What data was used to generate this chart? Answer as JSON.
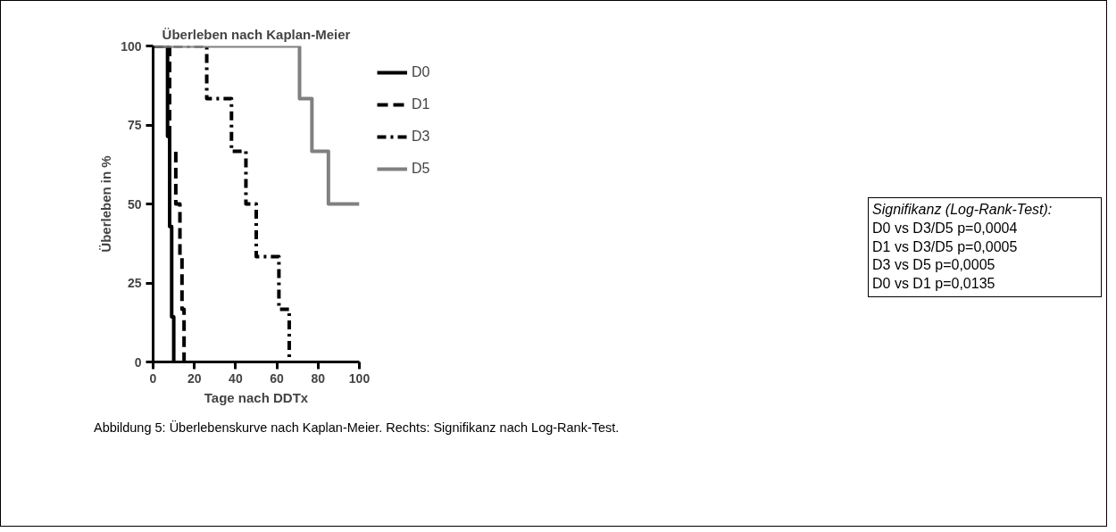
{
  "chart_data": {
    "type": "step",
    "title": "Überleben nach Kaplan-Meier",
    "xlabel": "Tage nach DDTx",
    "ylabel": "Überleben in %",
    "series": [
      {
        "name": "D0",
        "color": "#000000",
        "line_style": "solid",
        "x": [
          0,
          7,
          8,
          9,
          10
        ],
        "values": [
          100,
          71.4,
          42.9,
          14.3,
          0
        ]
      },
      {
        "name": "D1",
        "color": "#000000",
        "line_style": "dashed",
        "x": [
          0,
          8,
          11,
          13,
          14,
          15
        ],
        "values": [
          100,
          66.7,
          50,
          33.3,
          16.7,
          0
        ]
      },
      {
        "name": "D3",
        "color": "#000000",
        "line_style": "dotted",
        "x": [
          0,
          26,
          38,
          45,
          50,
          61,
          66
        ],
        "values": [
          100,
          83.3,
          66.7,
          50,
          33.3,
          16.7,
          0
        ]
      },
      {
        "name": "D5",
        "color": "#808080",
        "line_style": "solid",
        "x": [
          0,
          71,
          77,
          85,
          100
        ],
        "values": [
          100,
          83.3,
          66.7,
          50,
          50
        ]
      }
    ],
    "xlim": [
      0,
      100
    ],
    "xticks": [
      0,
      20,
      40,
      60,
      80,
      100
    ],
    "ylim": [
      0,
      100
    ],
    "yticks": [
      0,
      25,
      50,
      75,
      100
    ],
    "grid": false,
    "legend": "right",
    "annotations": [
      "Signifikanz (Log-Rank-Test):",
      "D0 vs D3/D5 p=0,0004",
      "D1 vs D3/D5 p=0,0005",
      "D3 vs D5 p=0,0005",
      "D0 vs D1 p=0,0135",
      "Abbildung 5: Überlebenskurve nach Kaplan-Meier. Rechts: Signifikanz nach Log-Rank-Test."
    ]
  }
}
